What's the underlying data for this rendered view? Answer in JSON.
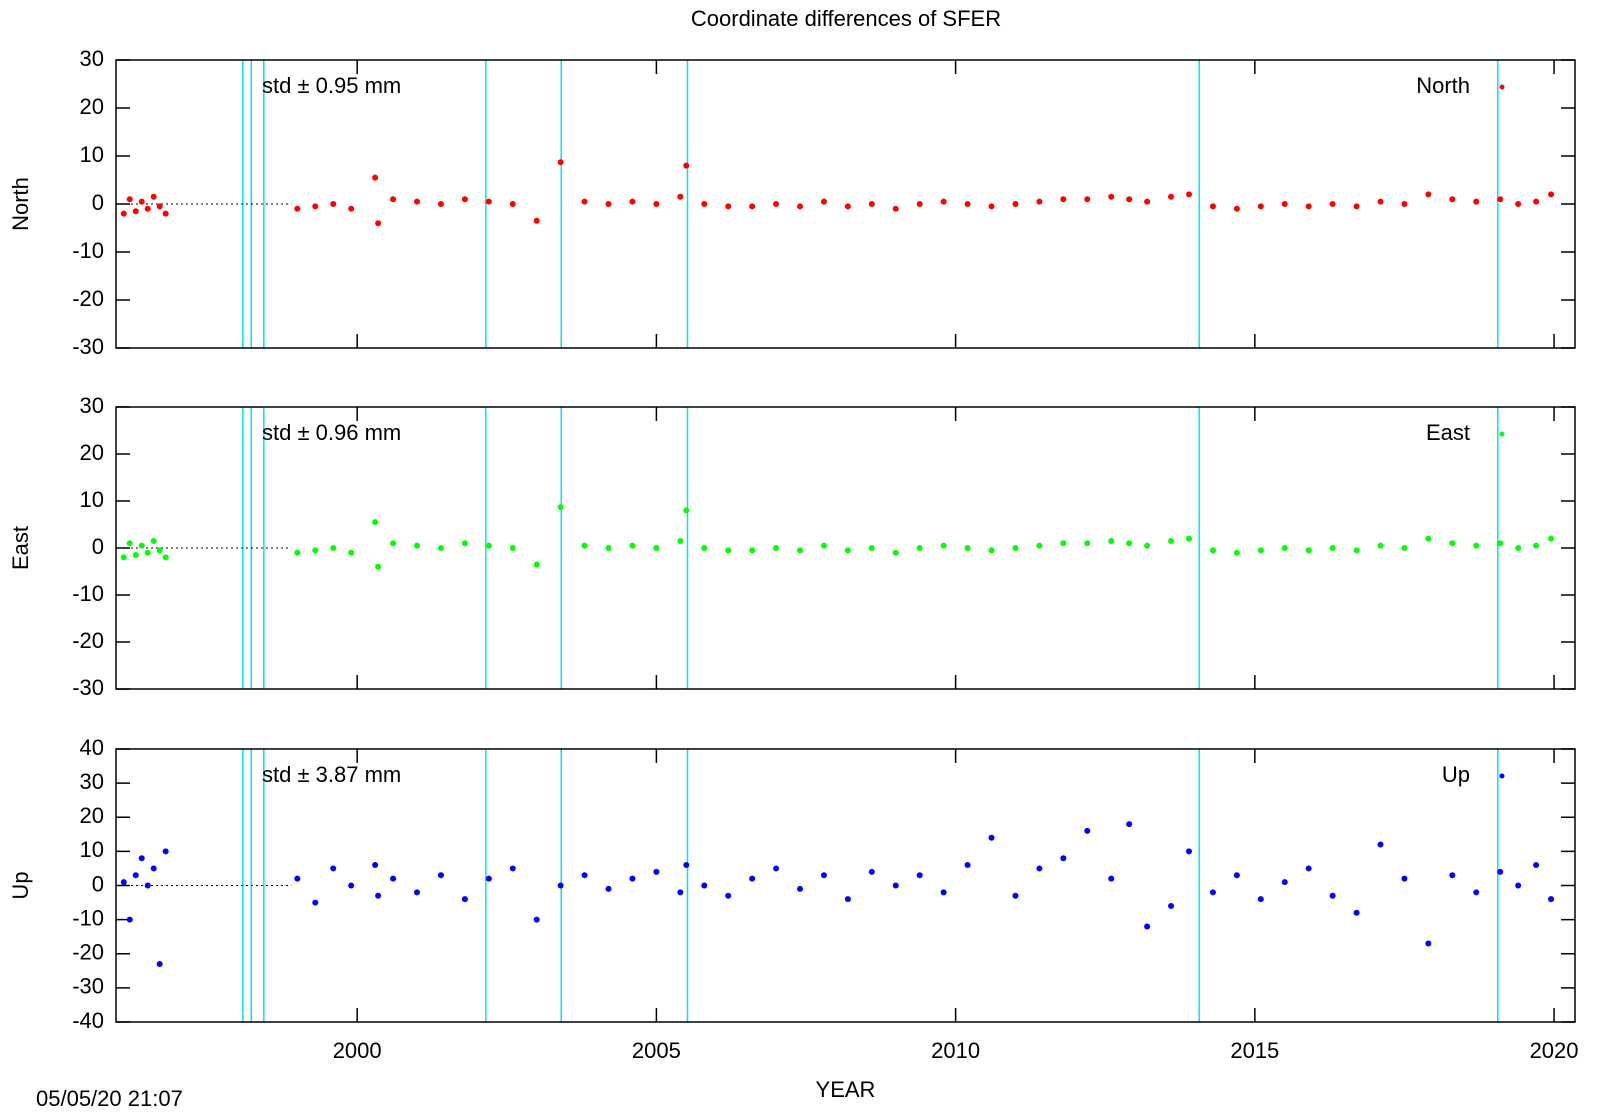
{
  "title": "Coordinate differences of SFER",
  "timestamp": "05/05/20 21:07",
  "chart_data": [
    {
      "type": "scatter",
      "ylabel": "North",
      "annotation": "std ± 0.95 mm",
      "xlim": [
        1995.97,
        2020.35
      ],
      "xticks": [
        2000,
        2005,
        2010,
        2015,
        2020
      ],
      "ylim": [
        -30,
        30
      ],
      "yticks": [
        -30,
        -20,
        -10,
        0,
        10,
        20,
        30
      ],
      "vlines": [
        1998.09,
        1998.23,
        1998.44,
        2002.15,
        2003.41,
        2005.52,
        2014.07,
        2019.06
      ],
      "vline_color": "#00e5ee",
      "zero_line_end": 1998.9,
      "series": [
        {
          "name": "North",
          "color": "#ff0000",
          "x": [
            1996.1,
            1996.2,
            1996.3,
            1996.4,
            1996.5,
            1996.6,
            1996.7,
            1996.8,
            1999.0,
            1999.3,
            1999.6,
            1999.9,
            2000.3,
            2000.35,
            2000.6,
            2001.0,
            2001.4,
            2001.8,
            2002.2,
            2002.6,
            2003.0,
            2003.4,
            2003.8,
            2004.2,
            2004.6,
            2005.0,
            2005.4,
            2005.5,
            2005.8,
            2006.2,
            2006.6,
            2007.0,
            2007.4,
            2007.8,
            2008.2,
            2008.6,
            2009.0,
            2009.4,
            2009.8,
            2010.2,
            2010.6,
            2011.0,
            2011.4,
            2011.8,
            2012.2,
            2012.6,
            2012.9,
            2013.2,
            2013.6,
            2013.9,
            2014.3,
            2014.7,
            2015.1,
            2015.5,
            2015.9,
            2016.3,
            2016.7,
            2017.1,
            2017.5,
            2017.9,
            2018.3,
            2018.7,
            2019.1,
            2019.4,
            2019.7,
            2019.95
          ],
          "values": [
            -2,
            1,
            -1.5,
            0.5,
            -1,
            1.5,
            -0.5,
            -2,
            -1,
            -0.5,
            0,
            -1,
            5.5,
            -4,
            1,
            0.5,
            0,
            1,
            0.5,
            0,
            -3.5,
            8.7,
            0.5,
            0,
            0.5,
            0,
            1.5,
            8,
            0,
            -0.5,
            -0.5,
            0,
            -0.5,
            0.5,
            -0.5,
            0,
            -1,
            0,
            0.5,
            0,
            -0.5,
            0,
            0.5,
            1,
            1,
            1.5,
            1,
            0.5,
            1.5,
            2,
            -0.5,
            -1,
            -0.5,
            0,
            -0.5,
            0,
            -0.5,
            0.5,
            0,
            2,
            1,
            0.5,
            1,
            0,
            0.5,
            2
          ]
        }
      ]
    },
    {
      "type": "scatter",
      "ylabel": "East",
      "annotation": "std ± 0.96 mm",
      "xlim": [
        1995.97,
        2020.35
      ],
      "xticks": [
        2000,
        2005,
        2010,
        2015,
        2020
      ],
      "ylim": [
        -30,
        30
      ],
      "yticks": [
        -30,
        -20,
        -10,
        0,
        10,
        20,
        30
      ],
      "vlines": [
        1998.09,
        1998.23,
        1998.44,
        2002.15,
        2003.41,
        2005.52,
        2014.07,
        2019.06
      ],
      "vline_color": "#00e5ee",
      "zero_line_end": 1998.9,
      "series": [
        {
          "name": "East",
          "color": "#00ff00",
          "x": [
            1996.1,
            1996.2,
            1996.3,
            1996.4,
            1996.5,
            1996.6,
            1996.7,
            1996.8,
            1999.0,
            1999.3,
            1999.6,
            1999.9,
            2000.3,
            2000.35,
            2000.6,
            2001.0,
            2001.4,
            2001.8,
            2002.2,
            2002.6,
            2003.0,
            2003.4,
            2003.8,
            2004.2,
            2004.6,
            2005.0,
            2005.4,
            2005.5,
            2005.8,
            2006.2,
            2006.6,
            2007.0,
            2007.4,
            2007.8,
            2008.2,
            2008.6,
            2009.0,
            2009.4,
            2009.8,
            2010.2,
            2010.6,
            2011.0,
            2011.4,
            2011.8,
            2012.2,
            2012.6,
            2012.9,
            2013.2,
            2013.6,
            2013.9,
            2014.3,
            2014.7,
            2015.1,
            2015.5,
            2015.9,
            2016.3,
            2016.7,
            2017.1,
            2017.5,
            2017.9,
            2018.3,
            2018.7,
            2019.1,
            2019.4,
            2019.7,
            2019.95
          ],
          "values": [
            -2,
            1,
            -1.5,
            0.5,
            -1,
            1.5,
            -0.5,
            -2,
            -1,
            -0.5,
            0,
            -1,
            5.5,
            -4,
            1,
            0.5,
            0,
            1,
            0.5,
            0,
            -3.5,
            8.7,
            0.5,
            0,
            0.5,
            0,
            1.5,
            8,
            0,
            -0.5,
            -0.5,
            0,
            -0.5,
            0.5,
            -0.5,
            0,
            -1,
            0,
            0.5,
            0,
            -0.5,
            0,
            0.5,
            1,
            1,
            1.5,
            1,
            0.5,
            1.5,
            2,
            -0.5,
            -1,
            -0.5,
            0,
            -0.5,
            0,
            -0.5,
            0.5,
            0,
            2,
            1,
            0.5,
            1,
            0,
            0.5,
            2
          ]
        }
      ]
    },
    {
      "type": "scatter",
      "ylabel": "Up",
      "xlabel": "YEAR",
      "annotation": "std ± 3.87 mm",
      "xlim": [
        1995.97,
        2020.35
      ],
      "xticks": [
        2000,
        2005,
        2010,
        2015,
        2020
      ],
      "ylim": [
        -40,
        40
      ],
      "yticks": [
        -40,
        -30,
        -20,
        -10,
        0,
        10,
        20,
        30,
        40
      ],
      "vlines": [
        1998.09,
        1998.23,
        1998.44,
        2002.15,
        2003.41,
        2005.52,
        2014.07,
        2019.06
      ],
      "vline_color": "#00e5ee",
      "zero_line_end": 1998.9,
      "series": [
        {
          "name": "Up",
          "color": "#0000ff",
          "x": [
            1996.1,
            1996.2,
            1996.3,
            1996.4,
            1996.5,
            1996.6,
            1996.7,
            1996.8,
            1999.0,
            1999.3,
            1999.6,
            1999.9,
            2000.3,
            2000.35,
            2000.6,
            2001.0,
            2001.4,
            2001.8,
            2002.2,
            2002.6,
            2003.0,
            2003.4,
            2003.8,
            2004.2,
            2004.6,
            2005.0,
            2005.4,
            2005.5,
            2005.8,
            2006.2,
            2006.6,
            2007.0,
            2007.4,
            2007.8,
            2008.2,
            2008.6,
            2009.0,
            2009.4,
            2009.8,
            2010.2,
            2010.6,
            2011.0,
            2011.4,
            2011.8,
            2012.2,
            2012.6,
            2012.9,
            2013.2,
            2013.6,
            2013.9,
            2014.3,
            2014.7,
            2015.1,
            2015.5,
            2015.9,
            2016.3,
            2016.7,
            2017.1,
            2017.5,
            2017.9,
            2018.3,
            2018.7,
            2019.1,
            2019.4,
            2019.7,
            2019.95
          ],
          "values": [
            1,
            -10,
            3,
            8,
            0,
            5,
            -23,
            10,
            2,
            -5,
            5,
            0,
            6,
            -3,
            2,
            -2,
            3,
            -4,
            2,
            5,
            -10,
            0,
            3,
            -1,
            2,
            4,
            -2,
            6,
            0,
            -3,
            2,
            5,
            -1,
            3,
            -4,
            4,
            0,
            3,
            -2,
            6,
            14,
            -3,
            5,
            8,
            16,
            2,
            18,
            -12,
            -6,
            10,
            -2,
            3,
            -4,
            1,
            5,
            -3,
            -8,
            12,
            2,
            -17,
            3,
            -2,
            4,
            0,
            6,
            -4
          ]
        }
      ]
    }
  ]
}
